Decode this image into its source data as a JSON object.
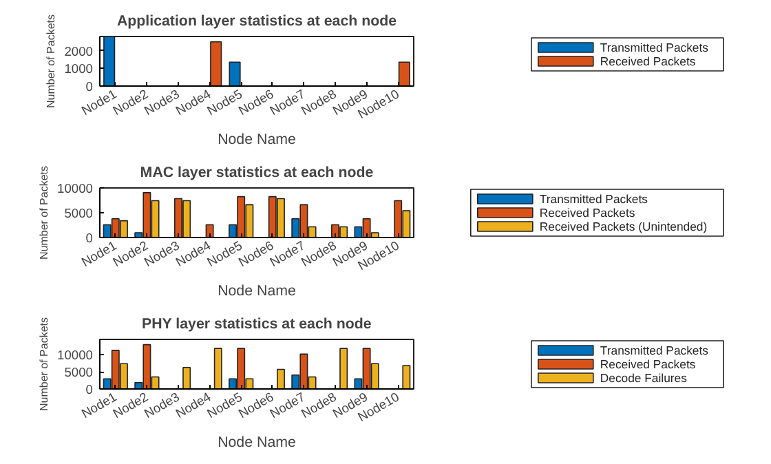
{
  "chart_data": [
    {
      "type": "bar",
      "title": "Application layer statistics at each node",
      "xlabel": "Node Name",
      "ylabel": "Number of Packets",
      "categories": [
        "Node1",
        "Node2",
        "Node3",
        "Node4",
        "Node5",
        "Node6",
        "Node7",
        "Node8",
        "Node9",
        "Node10"
      ],
      "ylim": [
        0,
        2800
      ],
      "yticks": [
        0,
        1000,
        2000
      ],
      "legend": "right",
      "series": [
        {
          "name": "Transmitted Packets",
          "color": "#0072bd",
          "values": [
            2800,
            null,
            null,
            null,
            1350,
            null,
            null,
            null,
            null,
            null
          ]
        },
        {
          "name": "Received Packets",
          "color": "#d95319",
          "values": [
            null,
            null,
            null,
            2500,
            null,
            null,
            null,
            null,
            null,
            1350
          ]
        }
      ]
    },
    {
      "type": "bar",
      "title": "MAC layer statistics at each node",
      "xlabel": "Node Name",
      "ylabel": "Number of Packets",
      "categories": [
        "Node1",
        "Node2",
        "Node3",
        "Node4",
        "Node5",
        "Node6",
        "Node7",
        "Node8",
        "Node9",
        "Node10"
      ],
      "ylim": [
        0,
        10000
      ],
      "yticks": [
        0,
        5000,
        10000
      ],
      "legend": "right",
      "series": [
        {
          "name": "Transmitted Packets",
          "color": "#0072bd",
          "values": [
            2570,
            950,
            null,
            null,
            2570,
            null,
            3780,
            null,
            2160,
            null
          ]
        },
        {
          "name": "Received Packets",
          "color": "#d95319",
          "values": [
            3780,
            9050,
            7840,
            2570,
            8240,
            8240,
            6620,
            2570,
            3780,
            7430
          ]
        },
        {
          "name": "Received Packets (Unintended)",
          "color": "#edb120",
          "values": [
            3380,
            7430,
            7430,
            null,
            6620,
            7840,
            2160,
            2160,
            950,
            5400
          ]
        }
      ]
    },
    {
      "type": "bar",
      "title": "PHY layer statistics at each node",
      "xlabel": "Node Name",
      "ylabel": "Number of Packets",
      "categories": [
        "Node1",
        "Node2",
        "Node3",
        "Node4",
        "Node5",
        "Node6",
        "Node7",
        "Node8",
        "Node9",
        "Node10"
      ],
      "ylim": [
        0,
        14500
      ],
      "yticks": [
        0,
        5000,
        10000
      ],
      "legend": "right",
      "series": [
        {
          "name": "Transmitted Packets",
          "color": "#0072bd",
          "values": [
            2960,
            1850,
            null,
            null,
            2960,
            null,
            4070,
            null,
            2960,
            null
          ]
        },
        {
          "name": "Received Packets",
          "color": "#d95319",
          "values": [
            11300,
            12960,
            null,
            null,
            11850,
            null,
            10190,
            null,
            11850,
            null
          ]
        },
        {
          "name": "Decode Failures",
          "color": "#edb120",
          "values": [
            7400,
            3520,
            6300,
            11850,
            2960,
            5740,
            3520,
            11850,
            7400,
            6850
          ]
        }
      ]
    }
  ]
}
